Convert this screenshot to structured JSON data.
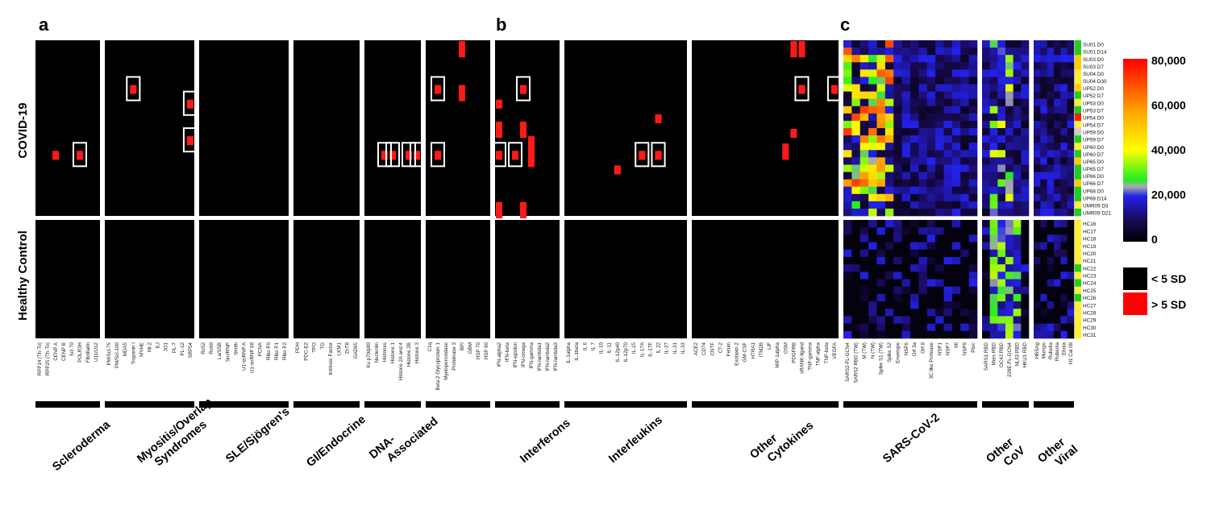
{
  "panel_labels": [
    "a",
    "b",
    "c"
  ],
  "row_labels": {
    "top": "COVID-19",
    "bottom": "Healthy Control"
  },
  "legend": {
    "gradient_ticks": [
      "80,000",
      "60,000",
      "40,000",
      "20,000",
      "0"
    ],
    "binary": [
      {
        "label": "< 5 SD",
        "color": "#000000"
      },
      {
        "label": "> 5 SD",
        "color": "#ff0000"
      }
    ]
  },
  "colors": {
    "positive": "#ff1a1a",
    "background": "#000000",
    "box": "#ffffff"
  },
  "covid_samples": [
    "SU01 D0",
    "SU01 D14",
    "SU03 D0",
    "SU03 D7",
    "SU04 D0",
    "SU04 D30",
    "UP52 D0",
    "UP52 D7",
    "UP53 D0",
    "UP53 D7",
    "UP54 D0",
    "UP54 D7",
    "UP59 D0",
    "UP59 D7",
    "UP60 D0",
    "UP60 D7",
    "UP65 D0",
    "UP65 D7",
    "UP66 D0",
    "UP66 D7",
    "UP68 D0",
    "UP68 D14",
    "UMR09 D3",
    "UMR09 D21"
  ],
  "hc_samples": [
    "HC16",
    "HC17",
    "HC18",
    "HC19",
    "HC20",
    "HC21",
    "HC22",
    "HC23",
    "HC24",
    "HC25",
    "HC26",
    "HC27",
    "HC28",
    "HC29",
    "HC30",
    "HC31"
  ],
  "sample_colors": [
    "#22cc22",
    "#22cc22",
    "#ffcc00",
    "#ffcc00",
    "#ffee33",
    "#ffee33",
    "#ffcc00",
    "#22cc22",
    "#ffee33",
    "#22cc22",
    "#ff2200",
    "#ffee33",
    "#cccccc",
    "#22cc22",
    "#ffee33",
    "#22cc22",
    "#ffcc00",
    "#22cc22",
    "#22cc22",
    "#ffcc00",
    "#22cc22",
    "#22cc22",
    "#ffee33",
    "#22cc22"
  ],
  "hc_sample_colors": [
    "#ffee33",
    "#ffee33",
    "#ffee33",
    "#ffee33",
    "#ffee33",
    "#ffee33",
    "#22cc22",
    "#ffee33",
    "#22cc22",
    "#ffee33",
    "#22cc22",
    "#ffee33",
    "#ffee33",
    "#ffee33",
    "#ffee33",
    "#ffee33"
  ],
  "chart_data": {
    "type": "heatmap",
    "value_range": [
      0,
      80000
    ],
    "binary_threshold": "5 SD",
    "groups": [
      {
        "name": "Scleroderma",
        "panel": "a",
        "columns": [
          "RPP14 (Th-To)",
          "RPP25 (Th-To)",
          "CENP A",
          "CENP B",
          "Scl 70",
          "POLR3H",
          "Fibrillarin",
          "U11/U12"
        ],
        "hits": [
          {
            "col": 2,
            "row": 15
          },
          {
            "col": 5,
            "row": 15,
            "boxed": true
          }
        ]
      },
      {
        "name": "Myositis/Overlap Syndromes",
        "panel": "a",
        "columns": [
          "PM/Scl-75",
          "PM/Scl-100",
          "MDA5",
          "Troponin I",
          "MYHE",
          "Mi-2",
          "EJ",
          "JO1",
          "PL-7",
          "PL-12",
          "SRP54"
        ],
        "hits": [
          {
            "col": 3,
            "row": 6,
            "boxed": true
          },
          {
            "col": 10,
            "row": 8,
            "boxed": true
          },
          {
            "col": 10,
            "row": 13,
            "boxed": true
          }
        ]
      },
      {
        "name": "SLE/Sjögren's",
        "panel": "a",
        "columns": [
          "Ro52",
          "Ro60",
          "La/SSB",
          "Sm/RNP",
          "Smith",
          "U1-snRNP A",
          "U1-snRNP 68",
          "PCNA",
          "Ribo P0",
          "Ribo P1",
          "Ribo P2"
        ],
        "hits": []
      },
      {
        "name": "GI/Endocrine",
        "panel": "a",
        "columns": [
          "PDH",
          "PDC-E2",
          "TPO",
          "TG",
          "Intrinsic Factor",
          "LKM1",
          "ZnT8",
          "GAD65"
        ],
        "hits": []
      },
      {
        "name": "DNA-Associated",
        "panel": "a",
        "columns": [
          "Ku p70/p80",
          "Nucleolin",
          "Histones",
          "Histone 1",
          "Histone 2A and 4",
          "Histone 2B",
          "Histone 3"
        ],
        "hits": [
          {
            "col": 2,
            "row": 15,
            "boxed": true
          },
          {
            "col": 3,
            "row": 15,
            "boxed": true
          },
          {
            "col": 5,
            "row": 15,
            "boxed": true
          },
          {
            "col": 6,
            "row": 15,
            "boxed": true
          }
        ]
      },
      {
        "name": "",
        "panel": "a",
        "columns": [
          "C1q",
          "Beta 2 Glycoprotein 1",
          "Myeloperoxidase",
          "Proteinase 3",
          "BPI",
          "GBM",
          "HSP 70",
          "HSP 90"
        ],
        "hits": [
          {
            "col": 1,
            "row": 6,
            "boxed": true
          },
          {
            "col": 4,
            "row": 0
          },
          {
            "col": 4,
            "row": 1
          },
          {
            "col": 4,
            "row": 6
          },
          {
            "col": 4,
            "row": 7
          },
          {
            "col": 1,
            "row": 15,
            "boxed": true
          }
        ]
      },
      {
        "name": "Interferons",
        "panel": "b",
        "columns": [
          "IFN-alpha2",
          "IFN-beta",
          "IFN-epsilon",
          "IFN-omega",
          "IFN-gamma",
          "IFN-lambda1",
          "IFN-lambda2",
          "IFN-lambda3"
        ],
        "hits": [
          {
            "col": 0,
            "row": 8
          },
          {
            "col": 0,
            "row": 11
          },
          {
            "col": 0,
            "row": 12
          },
          {
            "col": 0,
            "row": 15,
            "boxed": true
          },
          {
            "col": 0,
            "row": 22
          },
          {
            "col": 0,
            "row": 23
          },
          {
            "col": 2,
            "row": 15,
            "boxed": true
          },
          {
            "col": 3,
            "row": 6,
            "boxed": true
          },
          {
            "col": 3,
            "row": 11
          },
          {
            "col": 3,
            "row": 12
          },
          {
            "col": 3,
            "row": 22
          },
          {
            "col": 3,
            "row": 23
          },
          {
            "col": 4,
            "row": 13
          },
          {
            "col": 4,
            "row": 14
          },
          {
            "col": 4,
            "row": 15
          },
          {
            "col": 4,
            "row": 16
          }
        ]
      },
      {
        "name": "Interleukins",
        "panel": "b",
        "columns": [
          "IL-1alpha",
          "IL-1beta",
          "IL 6",
          "IL 7",
          "IL-10",
          "IL-11",
          "IL-12p40",
          "IL-12p70",
          "IL-15",
          "IL-17A",
          "IL-17F",
          "IL 22",
          "IL-27",
          "IL-31",
          "IL-33"
        ],
        "hits": [
          {
            "col": 6,
            "row": 17
          },
          {
            "col": 9,
            "row": 15,
            "boxed": true
          },
          {
            "col": 11,
            "row": 10
          },
          {
            "col": 11,
            "row": 15,
            "boxed": true
          }
        ]
      },
      {
        "name": "Other Cytokines",
        "panel": "b",
        "columns": [
          "ACE2",
          "CD74",
          "CNTF",
          "CT-2",
          "Fetuin",
          "Exotaxin 2",
          "GM-CSF",
          "HTRA1",
          "ITM2B",
          "LIF",
          "MIP-1alpha",
          "OSM",
          "PDGFRB",
          "sRANK-ligand",
          "TNF-gamma",
          "TNF-alpha",
          "TNF-beta",
          "VEGFA"
        ],
        "hits": [
          {
            "col": 12,
            "row": 0
          },
          {
            "col": 13,
            "row": 0
          },
          {
            "col": 12,
            "row": 1
          },
          {
            "col": 13,
            "row": 1
          },
          {
            "col": 13,
            "row": 6,
            "boxed": true
          },
          {
            "col": 12,
            "row": 12
          },
          {
            "col": 11,
            "row": 14
          },
          {
            "col": 11,
            "row": 15
          },
          {
            "col": 17,
            "row": 6,
            "boxed": true
          }
        ]
      },
      {
        "name": "SARS-CoV-2",
        "panel": "c",
        "columns": [
          "SARS2-FL-GCN4",
          "SARS2 RBD (TW)",
          "M (TW)",
          "N (TW)",
          "Spike S1 (TW)",
          "Spike S2",
          "Envelope",
          "NSP6",
          "Orf 3a",
          "Orf 8",
          "3C like Protease",
          "NSP1",
          "NSP7",
          "Mt",
          "NSP9",
          "Pbrc"
        ]
      },
      {
        "name": "Other CoV",
        "panel": "c",
        "columns": [
          "SARS1 RBD",
          "Mers RBD",
          "OC43 RBD",
          "229E-FL-GCN4",
          "NL63 RBD",
          "HKU1 RBD"
        ]
      },
      {
        "name": "Other Viral",
        "panel": "c",
        "columns": [
          "HBSAg",
          "Mumps",
          "Rubella",
          "Rubeola",
          "Ebola",
          "H1 Cal 09"
        ]
      }
    ]
  }
}
